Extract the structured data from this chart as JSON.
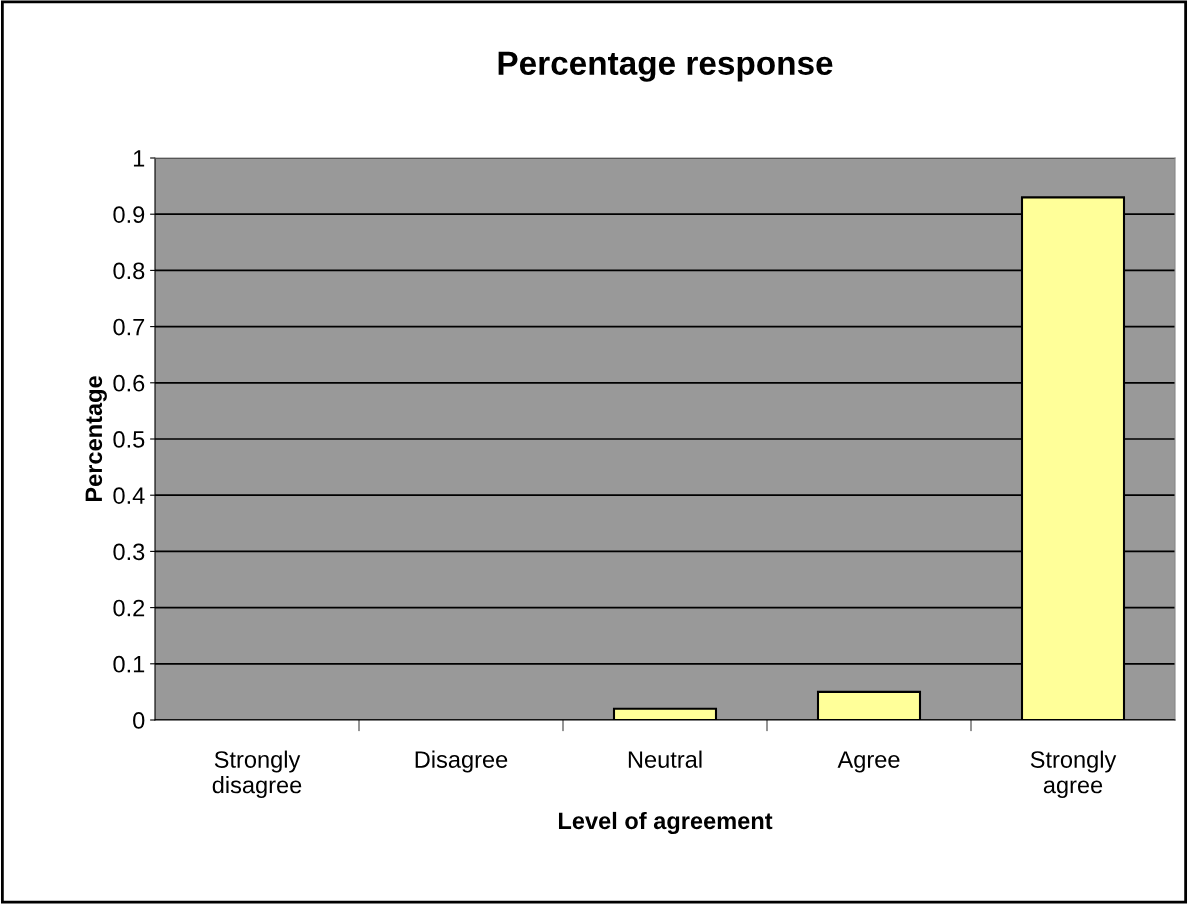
{
  "chart_data": {
    "type": "bar",
    "title": "Percentage response",
    "xlabel": "Level of agreement",
    "ylabel": "Percentage",
    "categories": [
      "Strongly\ndisagree",
      "Disagree",
      "Neutral",
      "Agree",
      "Strongly\nagree"
    ],
    "values": [
      0,
      0,
      0.02,
      0.05,
      0.93
    ],
    "color": "#ffff99",
    "ylim": [
      0,
      1
    ],
    "yticks": [
      0,
      0.1,
      0.2,
      0.3,
      0.4,
      0.5,
      0.6,
      0.7,
      0.8,
      0.9,
      1
    ],
    "grid": "y",
    "legend": false
  }
}
